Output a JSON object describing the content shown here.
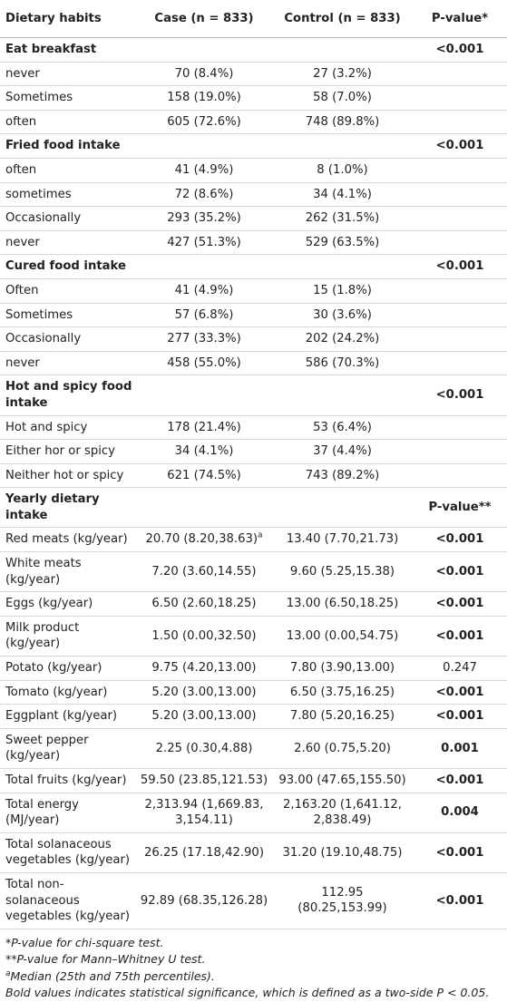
{
  "table": {
    "header": [
      "Dietary habits",
      "Case (n = 833)",
      "Control (n = 833)",
      "P-value*"
    ],
    "rows": [
      {
        "section": "Eat breakfast",
        "p": "<0.001"
      },
      {
        "label": "never",
        "case": "70 (8.4%)",
        "control": "27 (3.2%)"
      },
      {
        "label": "Sometimes",
        "case": "158 (19.0%)",
        "control": "58 (7.0%)"
      },
      {
        "label": "often",
        "case": "605 (72.6%)",
        "control": "748 (89.8%)"
      },
      {
        "section": "Fried food intake",
        "p": "<0.001"
      },
      {
        "label": "often",
        "case": "41 (4.9%)",
        "control": "8 (1.0%)"
      },
      {
        "label": "sometimes",
        "case": "72 (8.6%)",
        "control": "34 (4.1%)"
      },
      {
        "label": "Occasionally",
        "case": "293 (35.2%)",
        "control": "262 (31.5%)"
      },
      {
        "label": "never",
        "case": "427 (51.3%)",
        "control": "529 (63.5%)"
      },
      {
        "section": "Cured food intake",
        "p": "<0.001"
      },
      {
        "label": "Often",
        "case": "41 (4.9%)",
        "control": "15 (1.8%)"
      },
      {
        "label": "Sometimes",
        "case": "57 (6.8%)",
        "control": "30 (3.6%)"
      },
      {
        "label": "Occasionally",
        "case": "277 (33.3%)",
        "control": "202 (24.2%)"
      },
      {
        "label": "never",
        "case": "458 (55.0%)",
        "control": "586 (70.3%)"
      },
      {
        "section": "Hot and spicy food intake",
        "p": "<0.001"
      },
      {
        "label": "Hot and spicy",
        "case": "178 (21.4%)",
        "control": "53 (6.4%)"
      },
      {
        "label": "Either hor or spicy",
        "case": "34 (4.1%)",
        "control": "37 (4.4%)"
      },
      {
        "label": "Neither hot or spicy",
        "case": "621 (74.5%)",
        "control": "743 (89.2%)"
      },
      {
        "section": "Yearly dietary intake",
        "p": "P-value**"
      },
      {
        "label": "Red meats (kg/year)",
        "case": "20.70 (8.20,38.63)",
        "case_note": "a",
        "control": "13.40 (7.70,21.73)",
        "p": "<0.001",
        "bold_p": true
      },
      {
        "label": "White meats (kg/year)",
        "case": "7.20 (3.60,14.55)",
        "control": "9.60 (5.25,15.38)",
        "p": "<0.001",
        "bold_p": true
      },
      {
        "label": "Eggs (kg/year)",
        "case": "6.50 (2.60,18.25)",
        "control": "13.00 (6.50,18.25)",
        "p": "<0.001",
        "bold_p": true
      },
      {
        "label": "Milk product (kg/year)",
        "case": "1.50 (0.00,32.50)",
        "control": "13.00 (0.00,54.75)",
        "p": "<0.001",
        "bold_p": true
      },
      {
        "label": "Potato (kg/year)",
        "case": "9.75 (4.20,13.00)",
        "control": "7.80 (3.90,13.00)",
        "p": "0.247",
        "bold_p": false
      },
      {
        "label": "Tomato (kg/year)",
        "case": "5.20 (3.00,13.00)",
        "control": "6.50 (3.75,16.25)",
        "p": "<0.001",
        "bold_p": true
      },
      {
        "label": "Eggplant (kg/year)",
        "case": "5.20 (3.00,13.00)",
        "control": "7.80 (5.20,16.25)",
        "p": "<0.001",
        "bold_p": true
      },
      {
        "label": "Sweet pepper (kg/year)",
        "case": "2.25 (0.30,4.88)",
        "control": "2.60 (0.75,5.20)",
        "p": "0.001",
        "bold_p": true
      },
      {
        "label": "Total fruits (kg/year)",
        "case": "59.50 (23.85,121.53)",
        "control": "93.00 (47.65,155.50)",
        "p": "<0.001",
        "bold_p": true
      },
      {
        "label": "Total energy (MJ/year)",
        "case": "2,313.94 (1,669.83, 3,154.11)",
        "control": "2,163.20 (1,641.12, 2,838.49)",
        "p": "0.004",
        "bold_p": true
      },
      {
        "label": "Total solanaceous vegetables (kg/year)",
        "case": "26.25 (17.18,42.90)",
        "control": "31.20 (19.10,48.75)",
        "p": "<0.001",
        "bold_p": true
      },
      {
        "label": "Total non-solanaceous vegetables (kg/year)",
        "case": "92.89 (68.35,126.28)",
        "control": "112.95 (80.25,153.99)",
        "p": "<0.001",
        "bold_p": true
      }
    ],
    "footnotes": [
      {
        "mark": "*",
        "text": "P-value for chi-square test."
      },
      {
        "mark": "**",
        "text": "P-value for Mann–Whitney U test."
      },
      {
        "mark": "a",
        "text": "Median (25th and 75th percentiles)."
      },
      {
        "text": "Bold values indicates statistical significance, which is defined as a two-side P < 0.05."
      }
    ]
  }
}
